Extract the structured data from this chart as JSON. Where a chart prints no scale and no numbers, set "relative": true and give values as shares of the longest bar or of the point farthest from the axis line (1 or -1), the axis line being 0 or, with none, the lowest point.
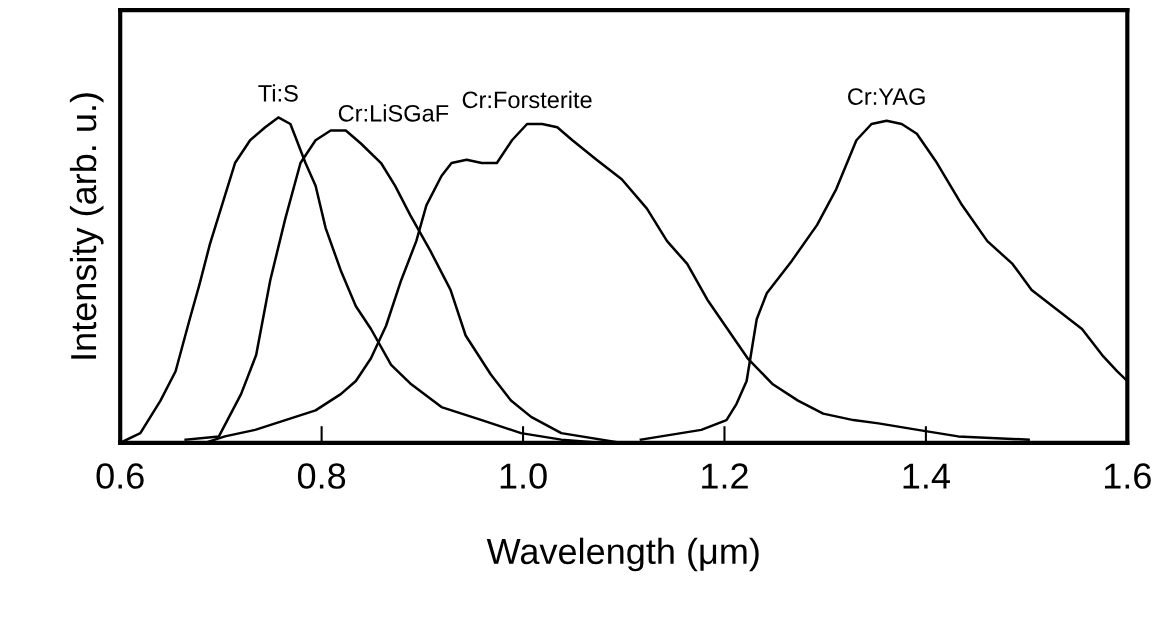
{
  "chart_data": {
    "type": "line",
    "relative": true,
    "xlabel": "Wavelength (μm)",
    "ylabel": "Intensity (arb. u.)",
    "xlim": [
      0.6,
      1.6
    ],
    "xticks": [
      0.6,
      0.8,
      {
        "value": 1.0,
        "label": "1.0"
      },
      1.2,
      1.4,
      1.6
    ],
    "tick_labels": "x",
    "grid": false,
    "legend": false,
    "marker": "none",
    "line_style": "solid",
    "series": [
      {
        "name": "Ti:S",
        "color": "#000000",
        "x": [
          0.6,
          0.62,
          0.64,
          0.655,
          0.669,
          0.679,
          0.689,
          0.704,
          0.714,
          0.729,
          0.744,
          0.757,
          0.769,
          0.784,
          0.794,
          0.804,
          0.819,
          0.834,
          0.849,
          0.869,
          0.889,
          0.919,
          0.959,
          0.998,
          1.038,
          1.078
        ],
        "values": [
          0,
          0.03,
          0.13,
          0.22,
          0.38,
          0.49,
          0.61,
          0.76,
          0.86,
          0.93,
          0.97,
          1,
          0.98,
          0.86,
          0.79,
          0.66,
          0.53,
          0.42,
          0.35,
          0.24,
          0.18,
          0.11,
          0.07,
          0.03,
          0.01,
          0
        ]
      },
      {
        "name": "Cr:LiSGaF",
        "color": "#000000",
        "x": [
          0.665,
          0.698,
          0.72,
          0.735,
          0.749,
          0.764,
          0.779,
          0.794,
          0.809,
          0.824,
          0.839,
          0.859,
          0.873,
          0.888,
          0.908,
          0.928,
          0.943,
          0.968,
          0.988,
          1.008,
          1.038,
          1.098,
          1.178
        ],
        "values": [
          0.01,
          0.02,
          0.15,
          0.27,
          0.5,
          0.69,
          0.86,
          0.93,
          0.96,
          0.96,
          0.92,
          0.86,
          0.79,
          0.7,
          0.59,
          0.47,
          0.33,
          0.21,
          0.13,
          0.08,
          0.03,
          0,
          0
        ]
      },
      {
        "name": "Cr:Forsterite",
        "color": "#000000",
        "x": [
          0.684,
          0.704,
          0.734,
          0.774,
          0.794,
          0.819,
          0.834,
          0.849,
          0.864,
          0.879,
          0.894,
          0.904,
          0.919,
          0.929,
          0.944,
          0.959,
          0.974,
          0.989,
          1.004,
          1.019,
          1.034,
          1.049,
          1.073,
          1.098,
          1.123,
          1.143,
          1.163,
          1.183,
          1.203,
          1.223,
          1.248,
          1.273,
          1.298,
          1.328,
          1.353,
          1.392,
          1.432,
          1.502
        ],
        "values": [
          0,
          0.02,
          0.04,
          0.08,
          0.1,
          0.15,
          0.19,
          0.26,
          0.36,
          0.5,
          0.62,
          0.73,
          0.82,
          0.86,
          0.87,
          0.86,
          0.86,
          0.93,
          0.98,
          0.98,
          0.97,
          0.93,
          0.87,
          0.81,
          0.72,
          0.62,
          0.55,
          0.44,
          0.35,
          0.26,
          0.18,
          0.13,
          0.09,
          0.07,
          0.06,
          0.04,
          0.02,
          0.01
        ]
      },
      {
        "name": "Cr:YAG",
        "color": "#000000",
        "x": [
          1.117,
          1.137,
          1.177,
          1.202,
          1.212,
          1.222,
          1.232,
          1.242,
          1.267,
          1.292,
          1.311,
          1.331,
          1.346,
          1.361,
          1.376,
          1.391,
          1.411,
          1.436,
          1.461,
          1.486,
          1.505,
          1.53,
          1.555,
          1.575,
          1.59,
          1.6
        ],
        "values": [
          0.01,
          0.02,
          0.04,
          0.07,
          0.12,
          0.19,
          0.38,
          0.46,
          0.56,
          0.67,
          0.78,
          0.93,
          0.98,
          0.99,
          0.98,
          0.95,
          0.86,
          0.73,
          0.62,
          0.55,
          0.47,
          0.41,
          0.35,
          0.27,
          0.22,
          0.19
        ]
      }
    ]
  }
}
